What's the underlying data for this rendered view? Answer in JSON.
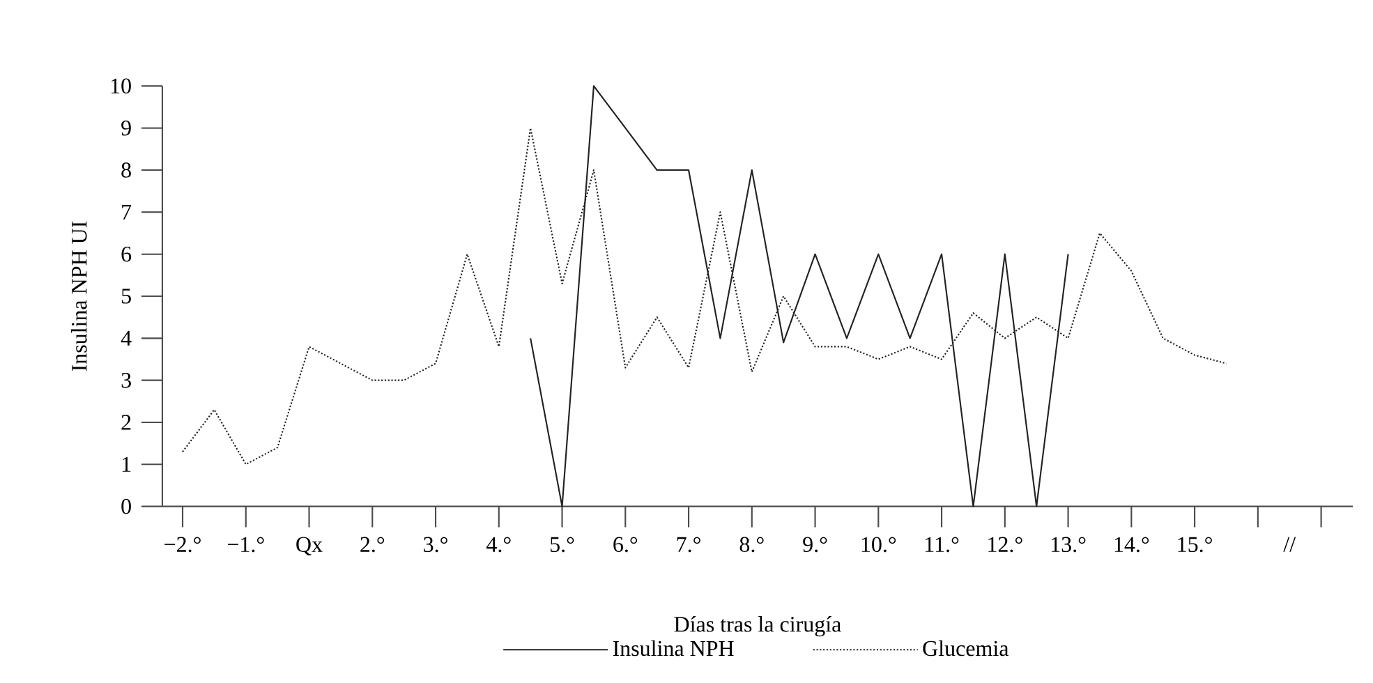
{
  "chart_data": {
    "type": "line",
    "xlabel": "Días tras la cirugía",
    "ylabel": "Insulina NPH UI",
    "categories": [
      "−2.°",
      null,
      "−1.°",
      null,
      "Qx",
      null,
      "2.°",
      null,
      "3.°",
      null,
      "4.°",
      null,
      "5.°",
      null,
      "6.°",
      null,
      "7.°",
      null,
      "8.°",
      null,
      "9.°",
      null,
      "10.°",
      null,
      "11.°",
      null,
      "12.°",
      null,
      "13.°",
      null,
      "14.°",
      null,
      "15.°",
      null,
      null,
      "//",
      null,
      null
    ],
    "ylim": [
      0,
      10
    ],
    "yticks": [
      0,
      1,
      2,
      3,
      4,
      5,
      6,
      7,
      8,
      9,
      10
    ],
    "legend": "bottom",
    "marker": "none",
    "series": [
      {
        "name": "Insulina NPH",
        "color": "#222222",
        "line_style": "solid",
        "values": [
          null,
          null,
          null,
          null,
          null,
          null,
          null,
          null,
          null,
          null,
          null,
          4,
          0,
          10,
          9,
          8,
          8,
          4,
          8,
          3.9,
          6,
          4,
          6,
          4,
          6,
          0,
          6,
          0,
          6,
          null,
          null,
          null,
          null,
          null,
          null,
          null,
          null,
          null
        ]
      },
      {
        "name": "Glucemia",
        "color": "#222222",
        "line_style": "dotted",
        "values": [
          1.3,
          2.3,
          1.0,
          1.4,
          3.8,
          3.4,
          3.0,
          3.0,
          3.4,
          6.0,
          3.8,
          9.0,
          5.3,
          8.0,
          3.3,
          4.5,
          3.3,
          7.0,
          3.2,
          5.0,
          3.8,
          3.8,
          3.5,
          3.8,
          3.5,
          4.6,
          4.0,
          4.5,
          4.0,
          6.5,
          5.6,
          4.0,
          3.6,
          3.4,
          null,
          null,
          null,
          null
        ]
      }
    ]
  }
}
